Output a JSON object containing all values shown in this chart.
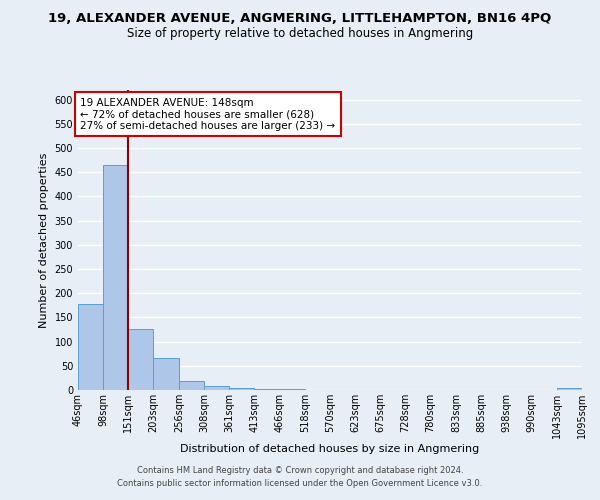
{
  "title": "19, ALEXANDER AVENUE, ANGMERING, LITTLEHAMPTON, BN16 4PQ",
  "subtitle": "Size of property relative to detached houses in Angmering",
  "xlabel": "Distribution of detached houses by size in Angmering",
  "ylabel": "Number of detached properties",
  "bin_edges": [
    46,
    98,
    151,
    203,
    256,
    308,
    361,
    413,
    466,
    518,
    570,
    623,
    675,
    728,
    780,
    833,
    885,
    938,
    990,
    1043,
    1095
  ],
  "bin_labels": [
    "46sqm",
    "98sqm",
    "151sqm",
    "203sqm",
    "256sqm",
    "308sqm",
    "361sqm",
    "413sqm",
    "466sqm",
    "518sqm",
    "570sqm",
    "623sqm",
    "675sqm",
    "728sqm",
    "780sqm",
    "833sqm",
    "885sqm",
    "938sqm",
    "990sqm",
    "1043sqm",
    "1095sqm"
  ],
  "bar_heights": [
    178,
    465,
    127,
    66,
    18,
    9,
    5,
    3,
    3,
    0,
    0,
    0,
    0,
    0,
    0,
    0,
    0,
    0,
    0,
    5
  ],
  "bar_color": "#aec6e8",
  "bar_edge_color": "#5a9fd4",
  "vline_x": 151,
  "vline_color": "#8b0000",
  "annotation_line1": "19 ALEXANDER AVENUE: 148sqm",
  "annotation_line2": "← 72% of detached houses are smaller (628)",
  "annotation_line3": "27% of semi-detached houses are larger (233) →",
  "annotation_box_color": "#ffffff",
  "annotation_box_edge": "#cc0000",
  "ylim": [
    0,
    620
  ],
  "yticks": [
    0,
    50,
    100,
    150,
    200,
    250,
    300,
    350,
    400,
    450,
    500,
    550,
    600
  ],
  "background_color": "#e8eef5",
  "grid_color": "#ffffff",
  "footer1": "Contains HM Land Registry data © Crown copyright and database right 2024.",
  "footer2": "Contains public sector information licensed under the Open Government Licence v3.0.",
  "title_fontsize": 9.5,
  "subtitle_fontsize": 8.5,
  "axis_label_fontsize": 8,
  "tick_fontsize": 7,
  "annotation_fontsize": 7.5
}
